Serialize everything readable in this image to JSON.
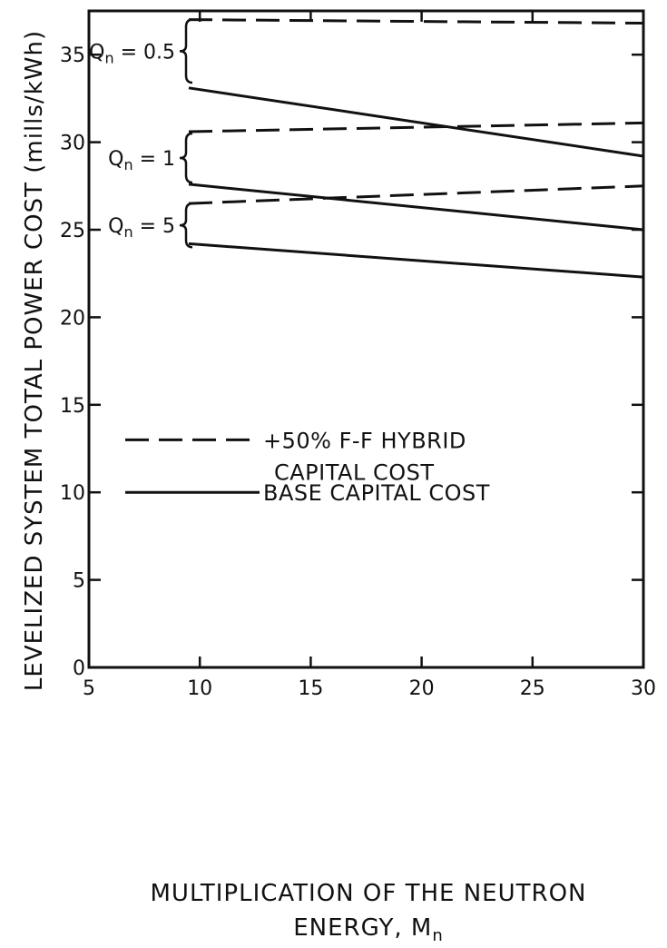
{
  "chart_data": {
    "type": "line",
    "title": "",
    "xlabel_line1": "MULTIPLICATION OF THE NEUTRON",
    "xlabel_line2_text": "ENERGY, M",
    "xlabel_line2_sub": "n",
    "ylabel": "LEVELIZED SYSTEM TOTAL POWER COST (mills/kWh)",
    "xlim": [
      5,
      30
    ],
    "ylim": [
      0,
      37.5
    ],
    "xticks": [
      5,
      10,
      15,
      20,
      25,
      30
    ],
    "xtick_labels": [
      "5",
      "10",
      "15",
      "20",
      "25",
      "30"
    ],
    "yticks": [
      0,
      5,
      10,
      15,
      20,
      25,
      30,
      35
    ],
    "ytick_labels": [
      "0",
      "5",
      "10",
      "15",
      "20",
      "25",
      "30",
      "35"
    ],
    "grid": false,
    "legend_position": "center-left",
    "legend": [
      {
        "style": "dashed",
        "line1": "+50% F-F HYBRID",
        "line2": "CAPITAL COST"
      },
      {
        "style": "solid",
        "line1": "BASE CAPITAL COST",
        "line2": ""
      }
    ],
    "groups": [
      {
        "q_main": "Q",
        "q_sub": "n",
        "q_value": " = 0.5",
        "bracket_top": 37.0,
        "bracket_bottom": 33.4
      },
      {
        "q_main": "Q",
        "q_sub": "n",
        "q_value": " = 1",
        "bracket_top": 30.5,
        "bracket_bottom": 27.7
      },
      {
        "q_main": "Q",
        "q_sub": "n",
        "q_value": " = 5",
        "bracket_top": 26.5,
        "bracket_bottom": 24.0
      }
    ],
    "series": [
      {
        "group": 0,
        "style": "dashed",
        "x": [
          9.5,
          30
        ],
        "y": [
          37.0,
          36.8
        ]
      },
      {
        "group": 0,
        "style": "solid",
        "x": [
          9.5,
          30
        ],
        "y": [
          33.1,
          29.2
        ]
      },
      {
        "group": 1,
        "style": "dashed",
        "x": [
          9.5,
          30
        ],
        "y": [
          30.6,
          31.1
        ]
      },
      {
        "group": 1,
        "style": "solid",
        "x": [
          9.5,
          30
        ],
        "y": [
          27.6,
          25.0
        ]
      },
      {
        "group": 2,
        "style": "dashed",
        "x": [
          9.5,
          30
        ],
        "y": [
          26.5,
          27.5
        ]
      },
      {
        "group": 2,
        "style": "solid",
        "x": [
          9.5,
          30
        ],
        "y": [
          24.2,
          22.3
        ]
      }
    ]
  }
}
